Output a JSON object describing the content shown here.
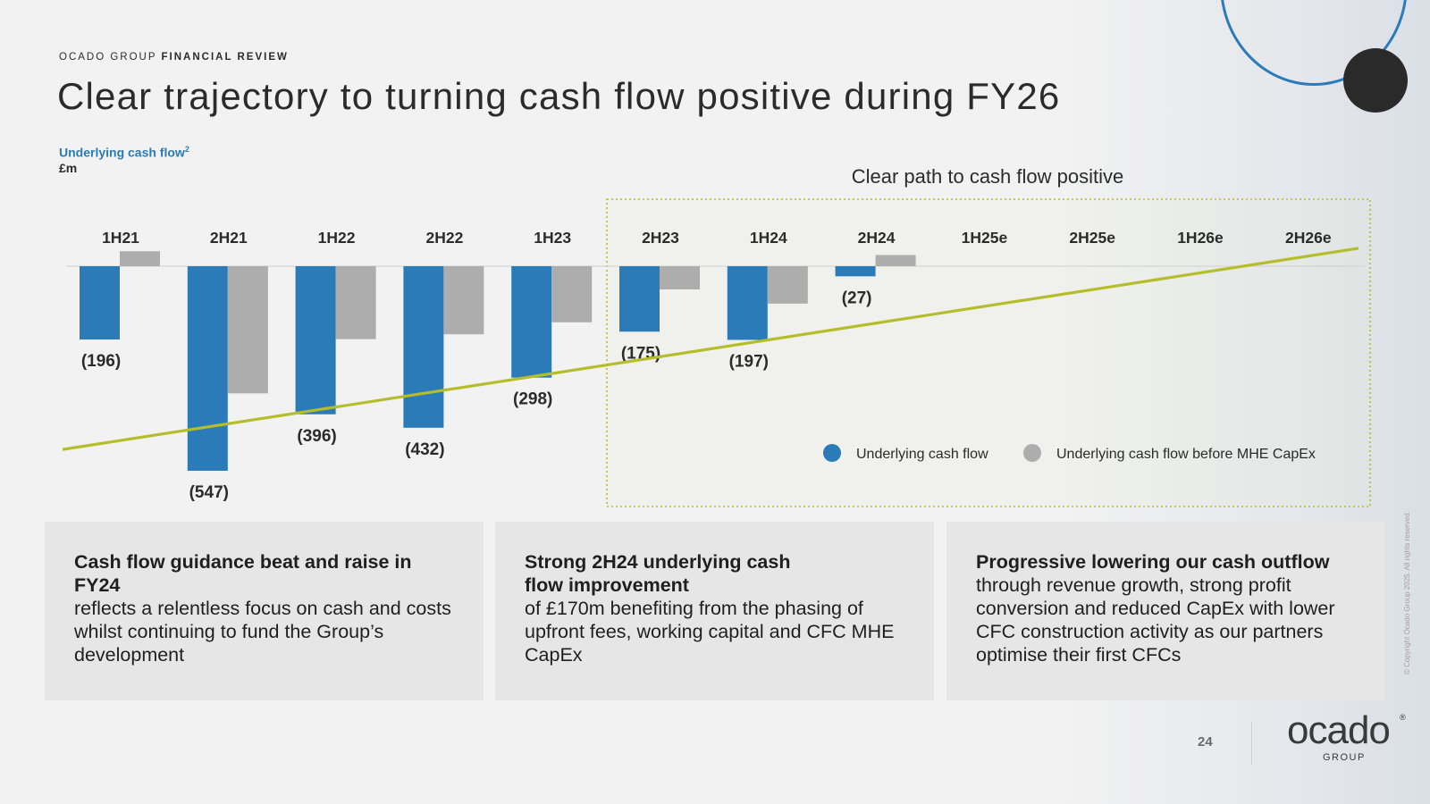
{
  "header": {
    "eyebrow_light": "OCADO GROUP",
    "eyebrow_bold": "FINANCIAL REVIEW",
    "title": "Clear trajectory to turning cash flow positive during FY26"
  },
  "chart_data": {
    "type": "bar",
    "title": "Underlying cash flow",
    "title_superscript": "2",
    "unit": "£m",
    "highlight_box_label": "Clear path to cash flow positive",
    "categories": [
      "1H21",
      "2H21",
      "1H22",
      "2H22",
      "1H23",
      "2H23",
      "1H24",
      "2H24",
      "1H25e",
      "2H25e",
      "1H26e",
      "2H26e"
    ],
    "series": [
      {
        "name": "Underlying cash flow",
        "color": "#2b7bb9",
        "values": [
          -196,
          -547,
          -396,
          -432,
          -298,
          -175,
          -197,
          -27,
          null,
          null,
          null,
          null
        ],
        "labels": [
          "(196)",
          "(547)",
          "(396)",
          "(432)",
          "(298)",
          "(175)",
          "(197)",
          "(27)",
          "",
          "",
          "",
          ""
        ]
      },
      {
        "name": "Underlying cash flow before MHE CapEx",
        "color": "#adadad",
        "values": [
          40,
          -340,
          -195,
          -182,
          -150,
          -62,
          -100,
          30,
          null,
          null,
          null,
          null
        ],
        "labels": []
      }
    ],
    "trend_line": {
      "color": "#b5bd2a",
      "start_value": -490,
      "end_value": 48
    },
    "ylim": [
      -600,
      60
    ],
    "legend_position": "bottom-right",
    "grid": false
  },
  "cards": [
    {
      "heading": "Cash flow guidance beat and raise in FY24",
      "body": "reflects a relentless focus on cash and costs whilst continuing to fund the Group’s development"
    },
    {
      "heading": "Strong 2H24 underlying cash flow improvement",
      "body": "of £170m benefiting from the phasing of upfront fees, working capital and CFC MHE CapEx"
    },
    {
      "heading": "Progressive lowering our cash outflow",
      "body": "through revenue growth, strong profit conversion and reduced CapEx with lower CFC construction activity as our partners optimise their first CFCs"
    }
  ],
  "footer": {
    "page_number": "24",
    "logo_word": "ocado",
    "logo_sub": "GROUP",
    "logo_reg": "®",
    "copyright": "© Copyright Ocado Group 2025. All rights reserved."
  }
}
